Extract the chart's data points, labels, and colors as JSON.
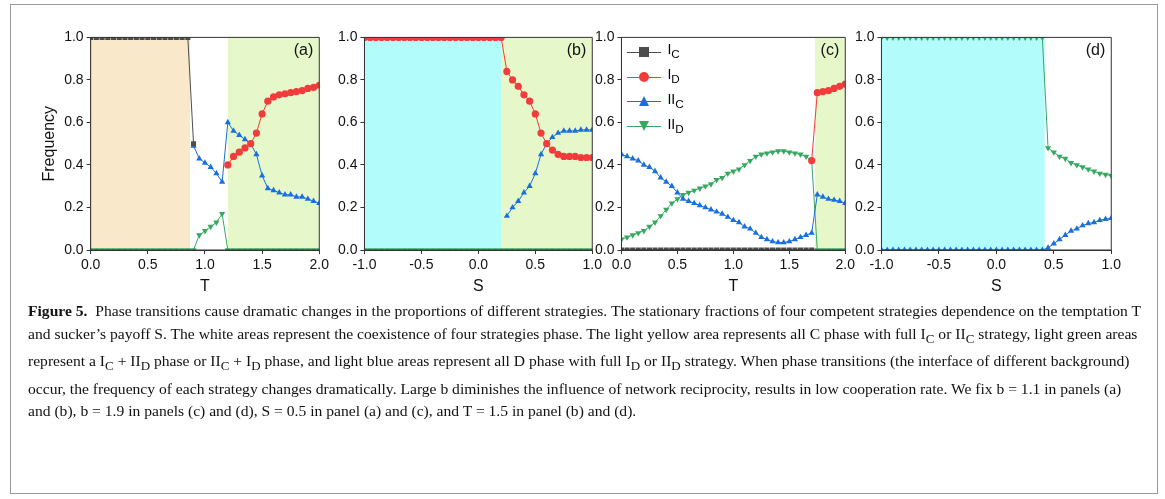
{
  "chart_data": [
    {
      "type": "line",
      "xlabel": "T",
      "ylabel": "Frequency",
      "legend": false,
      "grid": false,
      "line_style": "solid",
      "x": [
        0,
        0.05,
        0.1,
        0.15,
        0.2,
        0.25,
        0.3,
        0.35,
        0.4,
        0.45,
        0.5,
        0.55,
        0.6,
        0.65,
        0.7,
        0.75,
        0.8,
        0.85,
        0.9,
        0.95,
        1.0,
        1.05,
        1.1,
        1.15,
        1.2,
        1.25,
        1.3,
        1.35,
        1.4,
        1.45,
        1.5,
        1.55,
        1.6,
        1.65,
        1.7,
        1.75,
        1.8,
        1.85,
        1.9,
        1.95,
        2.0
      ],
      "xlim": [
        0,
        2
      ],
      "xticks": [
        {
          "value": 0,
          "label": "0.0"
        },
        {
          "value": 0.5,
          "label": "0.5"
        },
        {
          "value": 1,
          "label": "1.0"
        },
        {
          "value": 1.5,
          "label": "1.5"
        },
        {
          "value": 2,
          "label": "2.0"
        }
      ],
      "ylim": [
        0,
        1
      ],
      "yticks": [
        {
          "value": 0,
          "label": "0.0"
        },
        {
          "value": 0.2,
          "label": "0.2"
        },
        {
          "value": 0.4,
          "label": "0.4"
        },
        {
          "value": 0.6,
          "label": "0.6"
        },
        {
          "value": 0.8,
          "label": "0.8"
        },
        {
          "value": 1,
          "label": "1.0"
        }
      ],
      "bands": [
        {
          "axis": "x",
          "from": 0,
          "to": 0.87,
          "color": "#f9e8c9"
        },
        {
          "axis": "x",
          "from": 1.2,
          "to": 2,
          "color": "#e6f8ca"
        }
      ],
      "series": [
        {
          "color": "#4d4d4d",
          "marker": "square",
          "values": [
            1,
            1,
            1,
            1,
            1,
            1,
            1,
            1,
            1,
            1,
            1,
            1,
            1,
            1,
            1,
            1,
            1,
            1,
            0.5,
            null,
            null,
            null,
            null,
            null,
            null,
            null,
            null,
            null,
            null,
            null,
            null,
            null,
            null,
            null,
            null,
            null,
            null,
            null,
            null,
            null,
            null
          ]
        },
        {
          "color": "#f23c3c",
          "marker": "circle",
          "values": [
            null,
            null,
            null,
            null,
            null,
            null,
            null,
            null,
            null,
            null,
            null,
            null,
            null,
            null,
            null,
            null,
            null,
            null,
            null,
            null,
            null,
            null,
            null,
            null,
            0.4,
            0.44,
            0.46,
            0.48,
            0.5,
            0.55,
            0.64,
            0.7,
            0.72,
            0.73,
            0.735,
            0.74,
            0.745,
            0.75,
            0.76,
            0.765,
            0.775
          ]
        },
        {
          "color": "#1a6fdf",
          "marker": "triangle",
          "values": [
            null,
            null,
            null,
            null,
            null,
            null,
            null,
            null,
            null,
            null,
            null,
            null,
            null,
            null,
            null,
            null,
            null,
            null,
            0.49,
            0.43,
            0.41,
            0.39,
            0.36,
            0.32,
            0.6,
            0.56,
            0.54,
            0.52,
            0.5,
            0.45,
            0.35,
            0.29,
            0.28,
            0.27,
            0.26,
            0.26,
            0.25,
            0.25,
            0.24,
            0.23,
            0.22
          ]
        },
        {
          "color": "#37a860",
          "marker": "triangle-down",
          "values": [
            0,
            0,
            0,
            0,
            0,
            0,
            0,
            0,
            0,
            0,
            0,
            0,
            0,
            0,
            0,
            0,
            0,
            0,
            0,
            0.07,
            0.09,
            0.11,
            0.13,
            0.17,
            0,
            0,
            0,
            0,
            0,
            0,
            0,
            0,
            0,
            0,
            0,
            0,
            0,
            0,
            0,
            0,
            0
          ]
        }
      ],
      "annotations": [
        "(a)",
        "Figure 5.",
        "Phase transitions cause dramatic changes in the proportions of different strategies. The stationary fractions of four competent strategies dependence on the temptation T and sucker’s payoff S. The white areas represent the coexistence of four strategies phase. The light yellow area represents all C phase with full I$_{C}$ or II$_{C}$ strategy, light green areas represent a I$_{C}$ + II$_{D}$ phase or II$_{C}$ + I$_{D}$ phase, and light blue areas represent all D phase with full I$_{D}$ or II$_{D}$ strategy. When phase transitions (the interface of different background) occur, the frequency of each strategy changes dramatically. Large b diminishes the influence of network reciprocity, results in low cooperation rate. We fix b = 1.1 in panels (a) and (b), b = 1.9 in panels (c) and (d), S = 0.5 in panel (a) and (c), and T = 1.5 in panel (b) and (d)."
      ]
    },
    {
      "type": "line",
      "xlabel": "S",
      "legend": false,
      "grid": false,
      "line_style": "solid",
      "x": [
        -1,
        -0.95,
        -0.9,
        -0.85,
        -0.8,
        -0.75,
        -0.7,
        -0.65,
        -0.6,
        -0.55,
        -0.5,
        -0.45,
        -0.4,
        -0.35,
        -0.3,
        -0.25,
        -0.2,
        -0.15,
        -0.1,
        -0.05,
        0,
        0.05,
        0.1,
        0.15,
        0.2,
        0.25,
        0.3,
        0.35,
        0.4,
        0.45,
        0.5,
        0.55,
        0.6,
        0.65,
        0.7,
        0.75,
        0.8,
        0.85,
        0.9,
        0.95,
        1.0
      ],
      "xlim": [
        -1,
        1
      ],
      "xticks": [
        {
          "value": -1,
          "label": "-1.0"
        },
        {
          "value": -0.5,
          "label": "-0.5"
        },
        {
          "value": 0,
          "label": "0.0"
        },
        {
          "value": 0.5,
          "label": "0.5"
        },
        {
          "value": 1,
          "label": "1.0"
        }
      ],
      "ylim": [
        0,
        1
      ],
      "yticks": [
        {
          "value": 0,
          "label": "0.0"
        },
        {
          "value": 0.2,
          "label": "0.2"
        },
        {
          "value": 0.4,
          "label": "0.4"
        },
        {
          "value": 0.6,
          "label": "0.6"
        },
        {
          "value": 0.8,
          "label": "0.8"
        },
        {
          "value": 1,
          "label": "1.0"
        }
      ],
      "bands": [
        {
          "axis": "x",
          "from": -1,
          "to": 0.2,
          "color": "#b3fcfc"
        },
        {
          "axis": "x",
          "from": 0.2,
          "to": 1,
          "color": "#e6f8ca"
        }
      ],
      "series": [
        {
          "color": "#f23c3c",
          "marker": "circle",
          "values": [
            1,
            1,
            1,
            1,
            1,
            1,
            1,
            1,
            1,
            1,
            1,
            1,
            1,
            1,
            1,
            1,
            1,
            1,
            1,
            1,
            1,
            1,
            1,
            1,
            1,
            0.84,
            0.8,
            0.77,
            0.73,
            0.7,
            0.64,
            0.55,
            0.5,
            0.47,
            0.45,
            0.44,
            0.44,
            0.44,
            0.435,
            0.435,
            0.435
          ]
        },
        {
          "color": "#1a6fdf",
          "marker": "triangle",
          "values": [
            null,
            null,
            null,
            null,
            null,
            null,
            null,
            null,
            null,
            null,
            null,
            null,
            null,
            null,
            null,
            null,
            null,
            null,
            null,
            null,
            null,
            null,
            null,
            null,
            null,
            0.16,
            0.2,
            0.23,
            0.27,
            0.3,
            0.36,
            0.45,
            0.5,
            0.53,
            0.55,
            0.56,
            0.56,
            0.56,
            0.565,
            0.565,
            0.565
          ]
        },
        {
          "color": "#37a860",
          "marker": "triangle-down",
          "values": [
            0,
            0,
            0,
            0,
            0,
            0,
            0,
            0,
            0,
            0,
            0,
            0,
            0,
            0,
            0,
            0,
            0,
            0,
            0,
            0,
            0,
            0,
            0,
            0,
            0,
            0,
            0,
            0,
            0,
            0,
            0,
            0,
            0,
            0,
            0,
            0,
            0,
            0,
            0,
            0,
            0
          ]
        }
      ],
      "annotations": [
        "(b)"
      ]
    },
    {
      "type": "line",
      "xlabel": "T",
      "legend": "top left",
      "grid": false,
      "line_style": "solid",
      "x": [
        0,
        0.05,
        0.1,
        0.15,
        0.2,
        0.25,
        0.3,
        0.35,
        0.4,
        0.45,
        0.5,
        0.55,
        0.6,
        0.65,
        0.7,
        0.75,
        0.8,
        0.85,
        0.9,
        0.95,
        1.0,
        1.05,
        1.1,
        1.15,
        1.2,
        1.25,
        1.3,
        1.35,
        1.4,
        1.45,
        1.5,
        1.55,
        1.6,
        1.65,
        1.7,
        1.75,
        1.8,
        1.85,
        1.9,
        1.95,
        2.0
      ],
      "xlim": [
        0,
        2
      ],
      "xticks": [
        {
          "value": 0,
          "label": "0.0"
        },
        {
          "value": 0.5,
          "label": "0.5"
        },
        {
          "value": 1,
          "label": "1.0"
        },
        {
          "value": 1.5,
          "label": "1.5"
        },
        {
          "value": 2,
          "label": "2.0"
        }
      ],
      "ylim": [
        0,
        1
      ],
      "yticks": [
        {
          "value": 0,
          "label": "0.0"
        },
        {
          "value": 0.2,
          "label": "0.2"
        },
        {
          "value": 0.4,
          "label": "0.4"
        },
        {
          "value": 0.6,
          "label": "0.6"
        },
        {
          "value": 0.8,
          "label": "0.8"
        },
        {
          "value": 1,
          "label": "1.0"
        }
      ],
      "bands": [
        {
          "axis": "x",
          "from": 1.73,
          "to": 2,
          "color": "#e6f8ca"
        }
      ],
      "series": [
        {
          "name": "I$_{C}$",
          "color": "#4d4d4d",
          "marker": "square",
          "values": [
            0,
            0,
            0,
            0,
            0,
            0,
            0,
            0,
            0,
            0,
            0,
            0,
            0,
            0,
            0,
            0,
            0,
            0,
            0,
            0,
            0,
            0,
            0,
            0,
            0,
            0,
            0,
            0,
            0,
            0,
            0,
            0,
            0,
            0,
            0,
            null,
            null,
            null,
            null,
            null,
            null
          ]
        },
        {
          "name": "I$_{D}$",
          "color": "#f23c3c",
          "marker": "circle",
          "x": [
            1.7,
            1.75,
            1.8,
            1.85,
            1.9,
            1.95,
            2.0
          ],
          "values": [
            0.42,
            0.74,
            0.745,
            0.75,
            0.76,
            0.77,
            0.78
          ]
        },
        {
          "name": "II$_{C}$",
          "color": "#1a6fdf",
          "marker": "triangle",
          "values": [
            0.45,
            0.44,
            0.43,
            0.42,
            0.4,
            0.39,
            0.37,
            0.34,
            0.32,
            0.3,
            0.27,
            0.24,
            0.23,
            0.22,
            0.21,
            0.2,
            0.19,
            0.18,
            0.17,
            0.155,
            0.14,
            0.13,
            0.11,
            0.1,
            0.08,
            0.06,
            0.05,
            0.04,
            0.035,
            0.035,
            0.04,
            0.05,
            0.06,
            0.07,
            0.08,
            0.26,
            0.25,
            0.24,
            0.235,
            0.23,
            0.22
          ]
        },
        {
          "name": "II$_{D}$",
          "color": "#37a860",
          "marker": "triangle-down",
          "values": [
            0.05,
            0.06,
            0.07,
            0.08,
            0.09,
            0.11,
            0.13,
            0.16,
            0.19,
            0.22,
            0.24,
            0.26,
            0.27,
            0.28,
            0.29,
            0.3,
            0.31,
            0.33,
            0.34,
            0.36,
            0.37,
            0.38,
            0.4,
            0.42,
            0.44,
            0.45,
            0.455,
            0.46,
            0.465,
            0.465,
            0.46,
            0.455,
            0.45,
            0.44,
            0.42,
            0,
            0,
            0,
            0,
            0,
            0
          ]
        }
      ],
      "annotations": [
        "(c)"
      ]
    },
    {
      "type": "line",
      "xlabel": "S",
      "legend": false,
      "grid": false,
      "line_style": "solid",
      "x": [
        -1,
        -0.95,
        -0.9,
        -0.85,
        -0.8,
        -0.75,
        -0.7,
        -0.65,
        -0.6,
        -0.55,
        -0.5,
        -0.45,
        -0.4,
        -0.35,
        -0.3,
        -0.25,
        -0.2,
        -0.15,
        -0.1,
        -0.05,
        0,
        0.05,
        0.1,
        0.15,
        0.2,
        0.25,
        0.3,
        0.35,
        0.4,
        0.45,
        0.5,
        0.55,
        0.6,
        0.65,
        0.7,
        0.75,
        0.8,
        0.85,
        0.9,
        0.95,
        1.0
      ],
      "xlim": [
        -1,
        1
      ],
      "xticks": [
        {
          "value": -1,
          "label": "-1.0"
        },
        {
          "value": -0.5,
          "label": "-0.5"
        },
        {
          "value": 0,
          "label": "0.0"
        },
        {
          "value": 0.5,
          "label": "0.5"
        },
        {
          "value": 1,
          "label": "1.0"
        }
      ],
      "ylim": [
        0,
        1
      ],
      "yticks": [
        {
          "value": 0,
          "label": "0.0"
        },
        {
          "value": 0.2,
          "label": "0.2"
        },
        {
          "value": 0.4,
          "label": "0.4"
        },
        {
          "value": 0.6,
          "label": "0.6"
        },
        {
          "value": 0.8,
          "label": "0.8"
        },
        {
          "value": 1,
          "label": "1.0"
        }
      ],
      "bands": [
        {
          "axis": "x",
          "from": -1,
          "to": 0.42,
          "color": "#b3fcfc"
        }
      ],
      "series": [
        {
          "color": "#1a6fdf",
          "marker": "triangle",
          "values": [
            0,
            0,
            0,
            0,
            0,
            0,
            0,
            0,
            0,
            0,
            0,
            0,
            0,
            0,
            0,
            0,
            0,
            0,
            0,
            0,
            0,
            0,
            0,
            0,
            0,
            0,
            0,
            0,
            0,
            0.01,
            0.03,
            0.05,
            0.07,
            0.09,
            0.1,
            0.115,
            0.125,
            0.13,
            0.14,
            0.145,
            0.15
          ]
        },
        {
          "color": "#37a860",
          "marker": "triangle-down",
          "values": [
            1,
            1,
            1,
            1,
            1,
            1,
            1,
            1,
            1,
            1,
            1,
            1,
            1,
            1,
            1,
            1,
            1,
            1,
            1,
            1,
            1,
            1,
            1,
            1,
            1,
            1,
            1,
            1,
            1,
            0.48,
            0.46,
            0.44,
            0.43,
            0.41,
            0.4,
            0.39,
            0.38,
            0.37,
            0.36,
            0.355,
            0.35
          ]
        }
      ],
      "annotations": [
        "(d)"
      ]
    }
  ]
}
